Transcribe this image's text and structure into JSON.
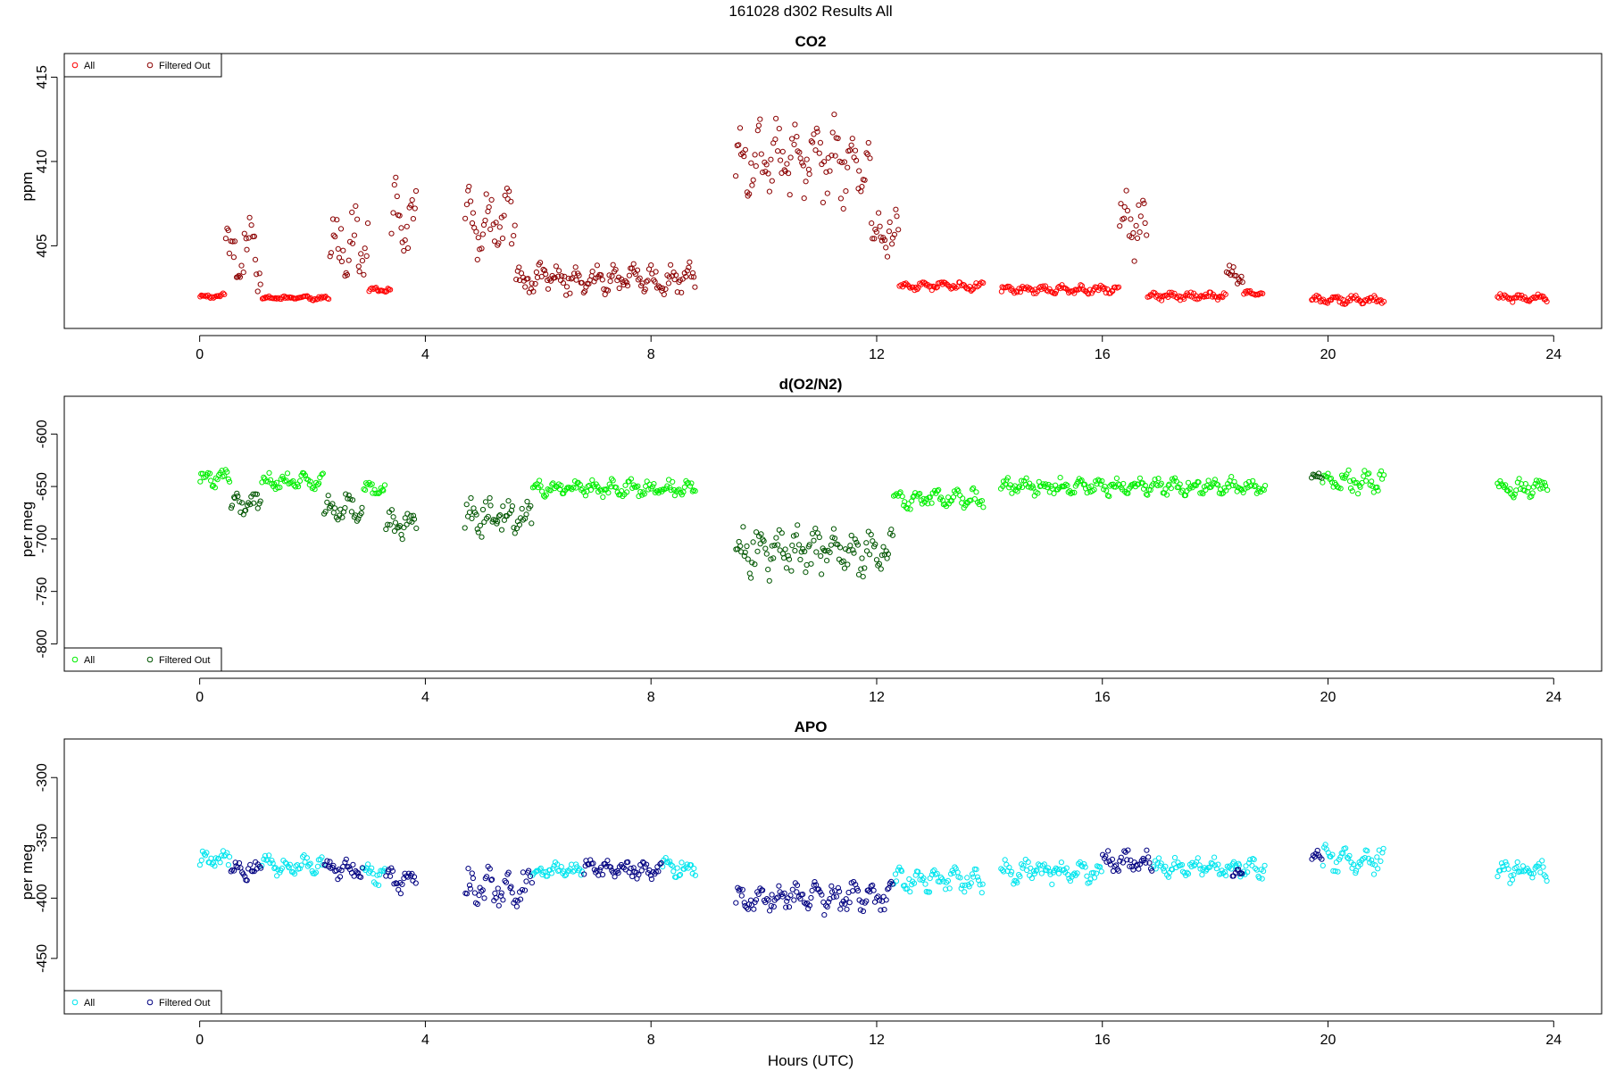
{
  "figure_title": "161028   d302   Results All",
  "xlabel": "Hours (UTC)",
  "colors": {
    "co2_all": "#ff0000",
    "co2_filtered": "#8b0000",
    "o2n2_all": "#00ee00",
    "o2n2_filtered": "#005500",
    "apo_all": "#00e5ee",
    "apo_filtered": "#000080"
  },
  "chart_data": [
    {
      "type": "scatter",
      "title": "CO2",
      "xlabel": "",
      "ylabel": "ppm",
      "xlim": [
        -2.4,
        24.85
      ],
      "ylim": [
        400.1,
        416.4
      ],
      "xticks": [
        0,
        4,
        8,
        12,
        16,
        20,
        24
      ],
      "yticks": [
        405,
        410,
        415
      ],
      "legend": {
        "position": "top-left",
        "entries": [
          "All",
          "Filtered Out"
        ]
      },
      "series": [
        {
          "name": "All",
          "color": "#ff0000",
          "segments": [
            {
              "x_start": 0.0,
              "x_end": 0.45,
              "baseline": 402.0,
              "amp": 0.2
            },
            {
              "x_start": 1.1,
              "x_end": 2.3,
              "baseline": 401.9,
              "amp": 0.15
            },
            {
              "x_start": 3.0,
              "x_end": 3.4,
              "baseline": 402.4,
              "amp": 0.2
            },
            {
              "x_start": 12.4,
              "x_end": 13.9,
              "baseline": 402.6,
              "amp": 0.3
            },
            {
              "x_start": 14.2,
              "x_end": 16.3,
              "baseline": 402.4,
              "amp": 0.3
            },
            {
              "x_start": 16.8,
              "x_end": 18.2,
              "baseline": 402.0,
              "amp": 0.3
            },
            {
              "x_start": 18.5,
              "x_end": 18.85,
              "baseline": 402.2,
              "amp": 0.15
            },
            {
              "x_start": 19.7,
              "x_end": 21.0,
              "baseline": 401.8,
              "amp": 0.3
            },
            {
              "x_start": 23.0,
              "x_end": 23.9,
              "baseline": 401.9,
              "amp": 0.3
            }
          ]
        },
        {
          "name": "Filtered Out",
          "color": "#8b0000",
          "segments": [
            {
              "x_start": 0.45,
              "x_end": 1.1,
              "baseline": 404.5,
              "amp": 2.5
            },
            {
              "x_start": 2.3,
              "x_end": 3.0,
              "baseline": 405.2,
              "amp": 2.8
            },
            {
              "x_start": 3.4,
              "x_end": 3.85,
              "baseline": 406.8,
              "amp": 2.5
            },
            {
              "x_start": 4.7,
              "x_end": 5.6,
              "baseline": 406.2,
              "amp": 2.5
            },
            {
              "x_start": 5.6,
              "x_end": 8.8,
              "baseline": 403.0,
              "amp": 1.1
            },
            {
              "x_start": 9.5,
              "x_end": 11.9,
              "baseline": 410.0,
              "amp": 3.0
            },
            {
              "x_start": 11.9,
              "x_end": 12.4,
              "baseline": 405.5,
              "amp": 1.8
            },
            {
              "x_start": 16.3,
              "x_end": 16.8,
              "baseline": 406.2,
              "amp": 2.5
            },
            {
              "x_start": 18.2,
              "x_end": 18.5,
              "baseline": 403.3,
              "amp": 0.8
            }
          ]
        }
      ]
    },
    {
      "type": "scatter",
      "title": "d(O2/N2)",
      "xlabel": "",
      "ylabel": "per meg",
      "xlim": [
        -2.4,
        24.85
      ],
      "ylim": [
        -826,
        -564
      ],
      "xticks": [
        0,
        4,
        8,
        12,
        16,
        20,
        24
      ],
      "yticks": [
        -800,
        -750,
        -700,
        -650,
        -600
      ],
      "legend": {
        "position": "bottom-left",
        "entries": [
          "All",
          "Filtered Out"
        ]
      },
      "series": [
        {
          "name": "All",
          "color": "#00ee00",
          "segments": [
            {
              "x_start": 0.0,
              "x_end": 0.55,
              "baseline": -642,
              "amp": 10
            },
            {
              "x_start": 1.1,
              "x_end": 2.2,
              "baseline": -645,
              "amp": 10
            },
            {
              "x_start": 2.9,
              "x_end": 3.3,
              "baseline": -653,
              "amp": 10
            },
            {
              "x_start": 5.9,
              "x_end": 8.8,
              "baseline": -652,
              "amp": 10
            },
            {
              "x_start": 12.3,
              "x_end": 13.9,
              "baseline": -662,
              "amp": 12
            },
            {
              "x_start": 14.2,
              "x_end": 18.9,
              "baseline": -650,
              "amp": 10
            },
            {
              "x_start": 19.9,
              "x_end": 21.0,
              "baseline": -645,
              "amp": 15
            },
            {
              "x_start": 23.0,
              "x_end": 23.9,
              "baseline": -652,
              "amp": 12
            }
          ]
        },
        {
          "name": "Filtered Out",
          "color": "#005500",
          "segments": [
            {
              "x_start": 0.55,
              "x_end": 1.1,
              "baseline": -668,
              "amp": 15
            },
            {
              "x_start": 2.2,
              "x_end": 2.9,
              "baseline": -670,
              "amp": 15
            },
            {
              "x_start": 3.3,
              "x_end": 3.85,
              "baseline": -688,
              "amp": 18
            },
            {
              "x_start": 4.7,
              "x_end": 5.9,
              "baseline": -678,
              "amp": 25
            },
            {
              "x_start": 9.5,
              "x_end": 12.3,
              "baseline": -712,
              "amp": 30
            },
            {
              "x_start": 19.7,
              "x_end": 19.9,
              "baseline": -642,
              "amp": 6
            }
          ]
        }
      ]
    },
    {
      "type": "scatter",
      "title": "APO",
      "xlabel": "Hours (UTC)",
      "ylabel": "per meg",
      "xlim": [
        -2.4,
        24.85
      ],
      "ylim": [
        -496,
        -268
      ],
      "xticks": [
        0,
        4,
        8,
        12,
        16,
        20,
        24
      ],
      "yticks": [
        -450,
        -400,
        -350,
        -300
      ],
      "legend": {
        "position": "bottom-left",
        "entries": [
          "All",
          "Filtered Out"
        ]
      },
      "series": [
        {
          "name": "All",
          "color": "#00e5ee",
          "segments": [
            {
              "x_start": 0.0,
              "x_end": 0.55,
              "baseline": -368,
              "amp": 10
            },
            {
              "x_start": 1.1,
              "x_end": 2.2,
              "baseline": -373,
              "amp": 10
            },
            {
              "x_start": 2.9,
              "x_end": 3.3,
              "baseline": -380,
              "amp": 10
            },
            {
              "x_start": 5.9,
              "x_end": 6.8,
              "baseline": -377,
              "amp": 8
            },
            {
              "x_start": 8.2,
              "x_end": 8.8,
              "baseline": -375,
              "amp": 10
            },
            {
              "x_start": 12.3,
              "x_end": 13.9,
              "baseline": -385,
              "amp": 12
            },
            {
              "x_start": 14.2,
              "x_end": 16.0,
              "baseline": -378,
              "amp": 12
            },
            {
              "x_start": 16.9,
              "x_end": 18.9,
              "baseline": -375,
              "amp": 10
            },
            {
              "x_start": 19.9,
              "x_end": 21.0,
              "baseline": -368,
              "amp": 15
            },
            {
              "x_start": 23.0,
              "x_end": 23.9,
              "baseline": -378,
              "amp": 12
            }
          ]
        },
        {
          "name": "Filtered Out",
          "color": "#000080",
          "segments": [
            {
              "x_start": 0.55,
              "x_end": 1.1,
              "baseline": -378,
              "amp": 12
            },
            {
              "x_start": 2.2,
              "x_end": 2.9,
              "baseline": -376,
              "amp": 10
            },
            {
              "x_start": 3.3,
              "x_end": 3.85,
              "baseline": -385,
              "amp": 12
            },
            {
              "x_start": 4.7,
              "x_end": 5.9,
              "baseline": -392,
              "amp": 20
            },
            {
              "x_start": 6.8,
              "x_end": 8.2,
              "baseline": -376,
              "amp": 10
            },
            {
              "x_start": 9.5,
              "x_end": 12.3,
              "baseline": -400,
              "amp": 15
            },
            {
              "x_start": 16.0,
              "x_end": 16.9,
              "baseline": -370,
              "amp": 12
            },
            {
              "x_start": 18.3,
              "x_end": 18.5,
              "baseline": -380,
              "amp": 6
            },
            {
              "x_start": 19.7,
              "x_end": 19.9,
              "baseline": -365,
              "amp": 6
            }
          ]
        }
      ]
    }
  ]
}
